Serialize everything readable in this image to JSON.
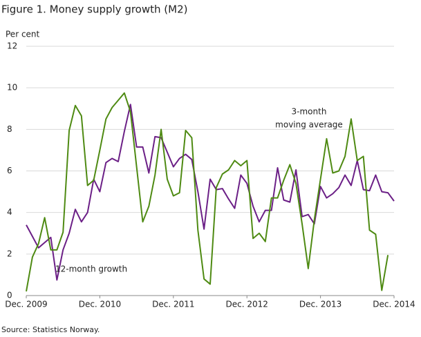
{
  "chart_data": {
    "type": "line",
    "title": "Figure 1. Money supply growth (M2)",
    "y_label": "Per cent",
    "source": "Source: Statistics Norway.",
    "categories": [
      "Dec. 2009",
      null,
      null,
      null,
      null,
      null,
      null,
      null,
      null,
      null,
      null,
      null,
      "Dec. 2010",
      null,
      null,
      null,
      null,
      null,
      null,
      null,
      null,
      null,
      null,
      null,
      "Dec. 2011",
      null,
      null,
      null,
      null,
      null,
      null,
      null,
      null,
      null,
      null,
      null,
      "Dec. 2012",
      null,
      null,
      null,
      null,
      null,
      null,
      null,
      null,
      null,
      null,
      null,
      "Dec. 2013",
      null,
      null,
      null,
      null,
      null,
      null,
      null,
      null,
      null,
      null,
      null,
      "Dec. 2014"
    ],
    "series": [
      {
        "name": "12-month growth",
        "color": "#6b1f86",
        "values": [
          3.4,
          2.85,
          2.3,
          2.55,
          2.8,
          0.75,
          2.2,
          3.0,
          4.15,
          3.55,
          4.0,
          5.6,
          5.0,
          6.4,
          6.6,
          6.45,
          7.9,
          9.2,
          7.15,
          7.15,
          5.9,
          7.65,
          7.6,
          6.9,
          6.2,
          6.6,
          6.8,
          6.55,
          5.0,
          3.2,
          5.6,
          5.1,
          5.15,
          4.65,
          4.2,
          5.8,
          5.4,
          4.3,
          3.55,
          4.1,
          4.1,
          6.15,
          4.6,
          4.5,
          6.05,
          3.8,
          3.9,
          3.45,
          5.25,
          4.7,
          4.9,
          5.2,
          5.8,
          5.3,
          6.5,
          5.1,
          5.05,
          5.8,
          5.0,
          4.95,
          4.55
        ]
      },
      {
        "name": "3-month moving average",
        "color": "#4e8a12",
        "values": [
          0.2,
          1.85,
          2.5,
          3.75,
          2.2,
          2.2,
          3.05,
          7.95,
          9.15,
          8.65,
          5.3,
          5.55,
          7.0,
          8.5,
          9.05,
          9.4,
          9.75,
          8.85,
          6.2,
          3.55,
          4.3,
          5.8,
          8.0,
          5.6,
          4.8,
          4.95,
          7.95,
          7.6,
          3.15,
          0.8,
          0.55,
          5.2,
          5.85,
          6.05,
          6.5,
          6.25,
          6.5,
          2.75,
          3.0,
          2.6,
          4.7,
          4.7,
          5.55,
          6.3,
          5.4,
          3.45,
          1.3,
          3.65,
          5.6,
          7.55,
          5.9,
          6.0,
          6.7,
          8.5,
          6.5,
          6.7,
          3.15,
          2.95,
          0.25,
          1.95,
          null
        ]
      }
    ],
    "annotations": [
      {
        "series": 1,
        "lines": [
          "3-month",
          "moving average"
        ]
      },
      {
        "series": 0,
        "lines": [
          "12-month  growth"
        ]
      }
    ],
    "ylim": [
      0,
      12
    ],
    "yticks": [
      0,
      2,
      4,
      6,
      8,
      10,
      12
    ],
    "grid": true
  }
}
